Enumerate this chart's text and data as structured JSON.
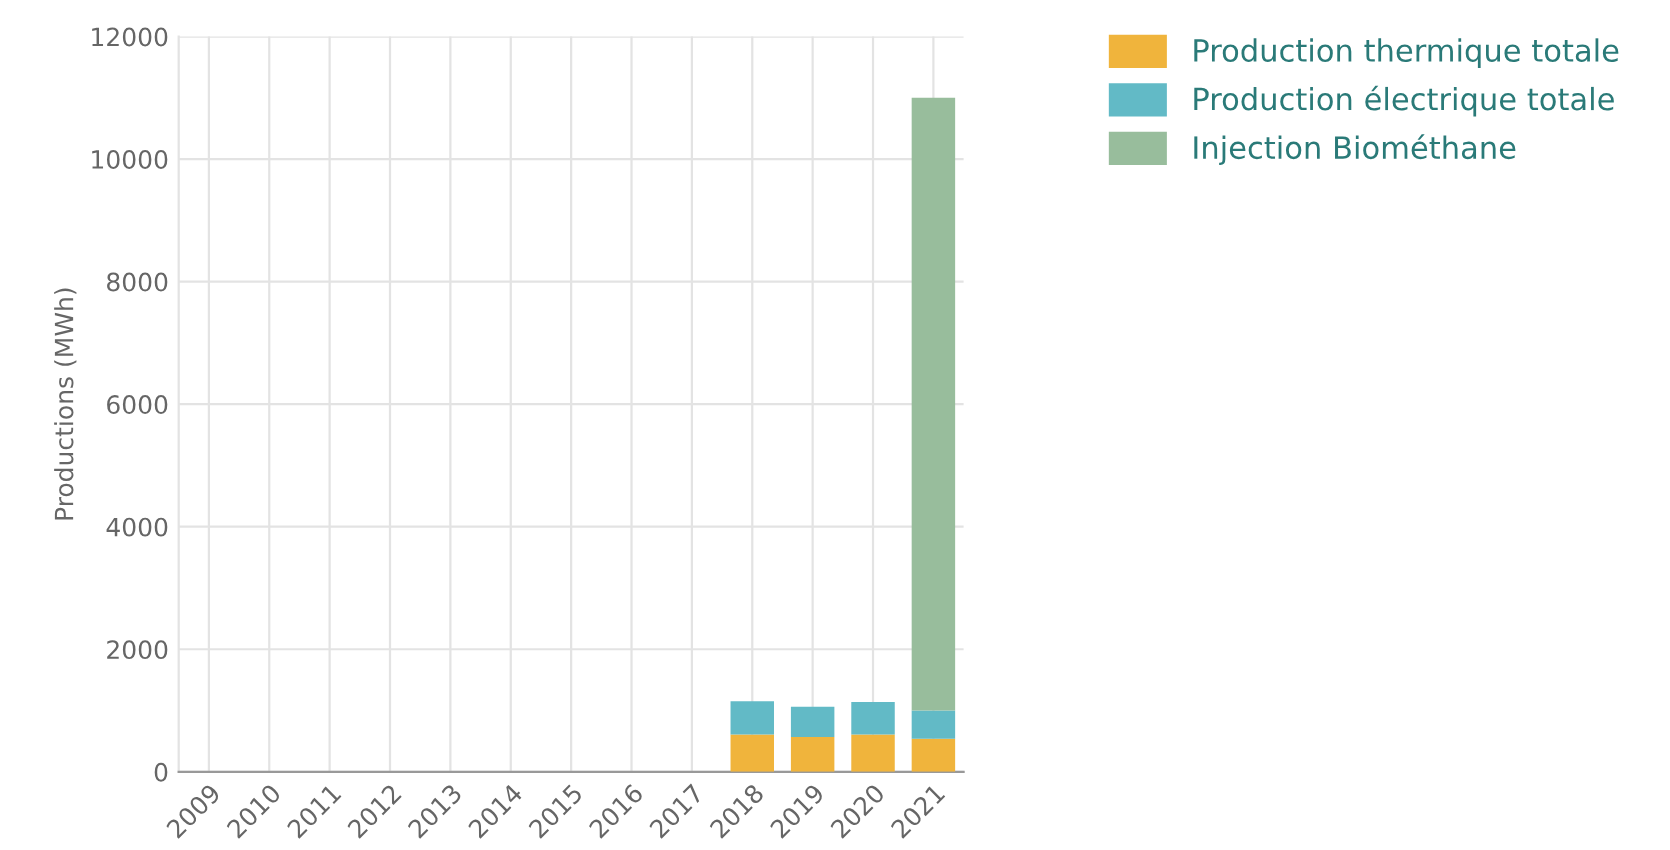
{
  "chart_data": {
    "type": "bar",
    "stacked": true,
    "ylabel": "Productions (MWh)",
    "categories": [
      "2009",
      "2010",
      "2011",
      "2012",
      "2013",
      "2014",
      "2015",
      "2016",
      "2017",
      "2018",
      "2019",
      "2020",
      "2021"
    ],
    "series": [
      {
        "name": "Production thermique totale",
        "color": "#f0b43c",
        "values": [
          null,
          null,
          null,
          null,
          null,
          null,
          null,
          null,
          null,
          610,
          570,
          610,
          540
        ]
      },
      {
        "name": "Production électrique totale",
        "color": "#62bac6",
        "values": [
          null,
          null,
          null,
          null,
          null,
          null,
          null,
          null,
          null,
          540,
          490,
          530,
          460
        ]
      },
      {
        "name": "Injection Biométhane",
        "color": "#98bd9c",
        "values": [
          null,
          null,
          null,
          null,
          null,
          null,
          null,
          null,
          null,
          null,
          null,
          null,
          10000
        ]
      }
    ],
    "ylim": [
      0,
      12000
    ],
    "yticks": [
      0,
      2000,
      4000,
      6000,
      8000,
      10000,
      12000
    ],
    "grid": true,
    "legend": "right"
  }
}
